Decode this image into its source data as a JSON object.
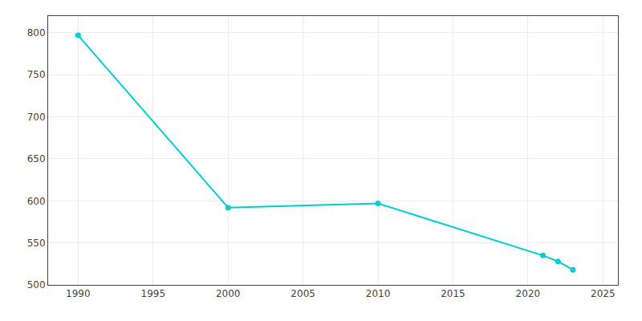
{
  "chart_data": {
    "type": "line",
    "x": [
      1990,
      2000,
      2010,
      2021,
      2022,
      2023
    ],
    "values": [
      797,
      592,
      597,
      535,
      528,
      518
    ],
    "color": "#00CED1",
    "marker": "circle",
    "xlim": [
      1988,
      2026
    ],
    "ylim": [
      500,
      820
    ],
    "xticks": [
      1990,
      1995,
      2000,
      2005,
      2010,
      2015,
      2020,
      2025
    ],
    "yticks": [
      500,
      550,
      600,
      650,
      700,
      750,
      800
    ],
    "grid": true
  }
}
